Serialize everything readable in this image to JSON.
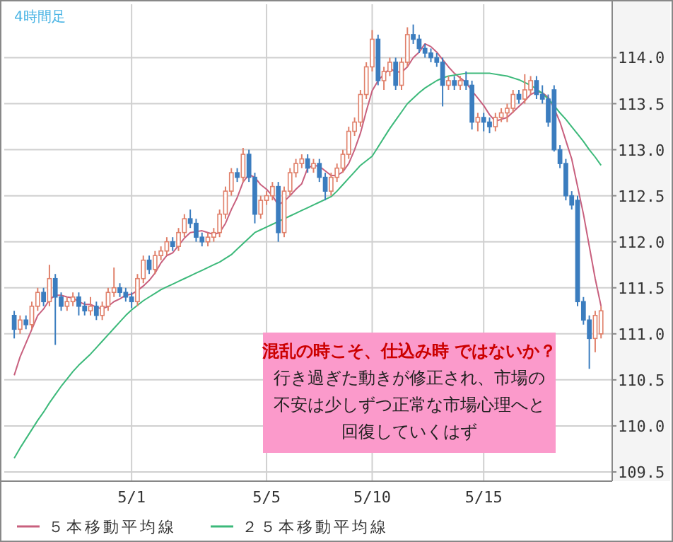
{
  "chart_data": {
    "type": "candlestick",
    "title": "4時間足",
    "categories": [
      null,
      null,
      null,
      null,
      null,
      null,
      null,
      null,
      null,
      null,
      null,
      null,
      null,
      null,
      null,
      null,
      null,
      null,
      null,
      null,
      "5/1",
      null,
      null,
      null,
      null,
      null,
      null,
      null,
      null,
      null,
      null,
      null,
      null,
      null,
      null,
      null,
      null,
      null,
      null,
      null,
      null,
      null,
      null,
      "5/5",
      null,
      null,
      null,
      null,
      null,
      null,
      null,
      null,
      null,
      null,
      null,
      null,
      null,
      null,
      null,
      null,
      null,
      "5/10",
      null,
      null,
      null,
      null,
      null,
      null,
      null,
      null,
      null,
      null,
      null,
      null,
      null,
      null,
      null,
      null,
      null,
      null,
      "5/15",
      null,
      null,
      null,
      null,
      null,
      null,
      null,
      null,
      null,
      null,
      null,
      null,
      null,
      null,
      null,
      null,
      null,
      null,
      null,
      null
    ],
    "ohlc": [
      [
        111.2,
        111.25,
        110.95,
        111.05
      ],
      [
        111.05,
        111.2,
        111.0,
        111.15
      ],
      [
        111.15,
        111.2,
        111.05,
        111.1
      ],
      [
        111.1,
        111.35,
        111.05,
        111.3
      ],
      [
        111.3,
        111.5,
        111.25,
        111.45
      ],
      [
        111.45,
        111.5,
        111.3,
        111.35
      ],
      [
        111.35,
        111.75,
        111.3,
        111.6
      ],
      [
        111.6,
        111.65,
        110.88,
        111.4
      ],
      [
        111.4,
        111.45,
        111.25,
        111.3
      ],
      [
        111.3,
        111.4,
        111.25,
        111.35
      ],
      [
        111.35,
        111.45,
        111.3,
        111.4
      ],
      [
        111.4,
        111.45,
        111.2,
        111.3
      ],
      [
        111.3,
        111.35,
        111.2,
        111.25
      ],
      [
        111.25,
        111.4,
        111.2,
        111.3
      ],
      [
        111.3,
        111.35,
        111.15,
        111.2
      ],
      [
        111.2,
        111.35,
        111.15,
        111.3
      ],
      [
        111.3,
        111.5,
        111.25,
        111.45
      ],
      [
        111.45,
        111.72,
        111.4,
        111.5
      ],
      [
        111.5,
        111.55,
        111.4,
        111.45
      ],
      [
        111.45,
        111.5,
        111.35,
        111.4
      ],
      [
        111.4,
        111.45,
        111.28,
        111.35
      ],
      [
        111.35,
        111.65,
        111.3,
        111.6
      ],
      [
        111.6,
        111.85,
        111.55,
        111.8
      ],
      [
        111.8,
        111.85,
        111.65,
        111.7
      ],
      [
        111.7,
        111.9,
        111.65,
        111.85
      ],
      [
        111.85,
        111.95,
        111.8,
        111.9
      ],
      [
        111.9,
        112.05,
        111.85,
        112.0
      ],
      [
        112.0,
        112.05,
        111.9,
        111.95
      ],
      [
        111.95,
        112.15,
        111.9,
        112.1
      ],
      [
        112.1,
        112.3,
        112.05,
        112.25
      ],
      [
        112.25,
        112.35,
        112.15,
        112.2
      ],
      [
        112.2,
        112.25,
        112.0,
        112.05
      ],
      [
        112.05,
        112.1,
        111.95,
        112.0
      ],
      [
        112.0,
        112.1,
        111.95,
        112.05
      ],
      [
        112.05,
        112.15,
        112.0,
        112.1
      ],
      [
        112.1,
        112.35,
        112.05,
        112.3
      ],
      [
        112.3,
        112.6,
        112.25,
        112.55
      ],
      [
        112.55,
        112.8,
        112.5,
        112.75
      ],
      [
        112.75,
        112.8,
        112.65,
        112.7
      ],
      [
        112.7,
        113.02,
        112.65,
        112.95
      ],
      [
        112.95,
        113.0,
        112.65,
        112.7
      ],
      [
        112.7,
        112.75,
        112.2,
        112.3
      ],
      [
        112.3,
        112.5,
        112.25,
        112.45
      ],
      [
        112.45,
        112.55,
        112.4,
        112.5
      ],
      [
        112.5,
        112.65,
        112.45,
        112.6
      ],
      [
        112.6,
        112.65,
        112.0,
        112.1
      ],
      [
        112.1,
        112.6,
        112.05,
        112.55
      ],
      [
        112.55,
        112.8,
        112.5,
        112.75
      ],
      [
        112.75,
        112.9,
        112.7,
        112.85
      ],
      [
        112.85,
        112.95,
        112.8,
        112.9
      ],
      [
        112.9,
        112.95,
        112.75,
        112.8
      ],
      [
        112.8,
        112.9,
        112.75,
        112.85
      ],
      [
        112.85,
        112.9,
        112.65,
        112.7
      ],
      [
        112.7,
        112.75,
        112.45,
        112.55
      ],
      [
        112.55,
        112.75,
        112.5,
        112.7
      ],
      [
        112.7,
        112.85,
        112.65,
        112.8
      ],
      [
        112.8,
        113.0,
        112.75,
        112.95
      ],
      [
        112.95,
        113.25,
        112.9,
        113.2
      ],
      [
        113.2,
        113.35,
        113.15,
        113.3
      ],
      [
        113.3,
        113.65,
        113.25,
        113.6
      ],
      [
        113.6,
        113.95,
        113.55,
        113.9
      ],
      [
        113.9,
        114.3,
        113.85,
        114.2
      ],
      [
        114.2,
        114.25,
        113.7,
        113.75
      ],
      [
        113.75,
        113.9,
        113.65,
        113.85
      ],
      [
        113.85,
        114.0,
        113.8,
        113.95
      ],
      [
        113.95,
        114.0,
        113.65,
        113.7
      ],
      [
        113.7,
        114.0,
        113.65,
        113.95
      ],
      [
        113.95,
        114.33,
        113.9,
        114.25
      ],
      [
        114.25,
        114.36,
        114.15,
        114.2
      ],
      [
        114.2,
        114.25,
        114.05,
        114.1
      ],
      [
        114.1,
        114.15,
        114.0,
        114.05
      ],
      [
        114.05,
        114.1,
        113.95,
        114.0
      ],
      [
        114.0,
        114.05,
        113.9,
        113.95
      ],
      [
        113.95,
        114.0,
        113.47,
        113.7
      ],
      [
        113.7,
        113.8,
        113.65,
        113.75
      ],
      [
        113.75,
        113.8,
        113.65,
        113.7
      ],
      [
        113.7,
        113.8,
        113.65,
        113.75
      ],
      [
        113.75,
        113.85,
        113.65,
        113.7
      ],
      [
        113.7,
        113.75,
        113.22,
        113.3
      ],
      [
        113.3,
        113.4,
        113.2,
        113.35
      ],
      [
        113.35,
        113.4,
        113.2,
        113.3
      ],
      [
        113.3,
        113.35,
        113.18,
        113.25
      ],
      [
        113.25,
        113.4,
        113.2,
        113.35
      ],
      [
        113.35,
        113.45,
        113.3,
        113.4
      ],
      [
        113.4,
        113.5,
        113.3,
        113.45
      ],
      [
        113.45,
        113.65,
        113.4,
        113.6
      ],
      [
        113.6,
        113.65,
        113.5,
        113.55
      ],
      [
        113.55,
        113.82,
        113.5,
        113.65
      ],
      [
        113.65,
        113.8,
        113.6,
        113.75
      ],
      [
        113.75,
        113.8,
        113.55,
        113.6
      ],
      [
        113.6,
        113.7,
        113.5,
        113.55
      ],
      [
        113.55,
        113.6,
        113.25,
        113.3
      ],
      [
        113.65,
        113.7,
        112.98,
        113.0
      ],
      [
        113.0,
        113.05,
        112.8,
        112.85
      ],
      [
        112.85,
        112.9,
        112.45,
        112.5
      ],
      [
        112.5,
        112.55,
        112.35,
        112.4
      ],
      [
        112.45,
        112.5,
        111.3,
        111.35
      ],
      [
        111.35,
        111.4,
        111.1,
        111.15
      ],
      [
        111.15,
        111.2,
        110.62,
        110.95
      ],
      [
        110.95,
        111.25,
        110.8,
        111.2
      ],
      [
        111.0,
        111.3,
        110.95,
        111.25
      ]
    ],
    "series": [
      {
        "name": "５本移動平均線",
        "type": "line",
        "color": "#c8607e",
        "values": [
          110.55,
          110.75,
          110.9,
          111.05,
          111.2,
          111.27,
          111.37,
          111.42,
          111.42,
          111.4,
          111.39,
          111.35,
          111.32,
          111.32,
          111.29,
          111.27,
          111.3,
          111.35,
          111.38,
          111.42,
          111.43,
          111.47,
          111.52,
          111.58,
          111.66,
          111.77,
          111.85,
          111.88,
          111.96,
          112.04,
          112.1,
          112.11,
          112.12,
          112.1,
          112.08,
          112.1,
          112.2,
          112.35,
          112.48,
          112.65,
          112.73,
          112.7,
          112.62,
          112.57,
          112.5,
          112.4,
          112.44,
          112.5,
          112.57,
          112.63,
          112.8,
          112.83,
          112.82,
          112.77,
          112.72,
          112.72,
          112.76,
          112.85,
          113.0,
          113.18,
          113.42,
          113.64,
          113.75,
          113.82,
          113.88,
          113.85,
          113.84,
          113.9,
          114.0,
          114.06,
          114.15,
          114.12,
          114.06,
          113.98,
          113.9,
          113.83,
          113.78,
          113.73,
          113.64,
          113.56,
          113.48,
          113.38,
          113.31,
          113.33,
          113.35,
          113.41,
          113.47,
          113.53,
          113.6,
          113.63,
          113.62,
          113.57,
          113.45,
          113.3,
          113.1,
          112.9,
          112.6,
          112.3,
          111.95,
          111.6,
          111.3
        ]
      },
      {
        "name": "２５本移動平均線",
        "type": "line",
        "color": "#3cb97a",
        "values": [
          109.65,
          109.76,
          109.86,
          109.96,
          110.06,
          110.15,
          110.25,
          110.34,
          110.43,
          110.51,
          110.59,
          110.66,
          110.72,
          110.78,
          110.85,
          110.92,
          110.99,
          111.06,
          111.13,
          111.2,
          111.26,
          111.31,
          111.36,
          111.4,
          111.44,
          111.48,
          111.51,
          111.54,
          111.57,
          111.6,
          111.63,
          111.66,
          111.69,
          111.72,
          111.75,
          111.78,
          111.82,
          111.86,
          111.92,
          111.98,
          112.04,
          112.1,
          112.13,
          112.16,
          112.19,
          112.22,
          112.25,
          112.28,
          112.31,
          112.34,
          112.37,
          112.4,
          112.43,
          112.46,
          112.49,
          112.55,
          112.62,
          112.69,
          112.76,
          112.83,
          112.88,
          112.93,
          113.03,
          113.13,
          113.23,
          113.32,
          113.41,
          113.5,
          113.56,
          113.62,
          113.67,
          113.71,
          113.75,
          113.78,
          113.8,
          113.81,
          113.82,
          113.83,
          113.83,
          113.83,
          113.83,
          113.83,
          113.82,
          113.81,
          113.8,
          113.78,
          113.76,
          113.73,
          113.7,
          113.66,
          113.61,
          113.55,
          113.48,
          113.4,
          113.33,
          113.25,
          113.17,
          113.09,
          113.0,
          112.92,
          112.83
        ]
      }
    ],
    "ylim": [
      109.4,
      114.58
    ],
    "yticks": [
      {
        "value": 109.5,
        "label": "109.5"
      },
      {
        "value": 110,
        "label": "110.0"
      },
      {
        "value": 110.5,
        "label": "110.5"
      },
      {
        "value": 111,
        "label": "111.0"
      },
      {
        "value": 111.5,
        "label": "111.5"
      },
      {
        "value": 112,
        "label": "112.0"
      },
      {
        "value": 112.5,
        "label": "112.5"
      },
      {
        "value": 113,
        "label": "113.0"
      },
      {
        "value": 113.5,
        "label": "113.5"
      },
      {
        "value": 114,
        "label": "114.0"
      }
    ],
    "grid": true,
    "legend": "bottom",
    "annotations": [
      "混乱の時こそ、仕込み時 ではないか？",
      "行き過ぎた動きが修正され、市場の",
      "不安は少しずつ正常な市場心理へと",
      "回復していくはず"
    ]
  }
}
